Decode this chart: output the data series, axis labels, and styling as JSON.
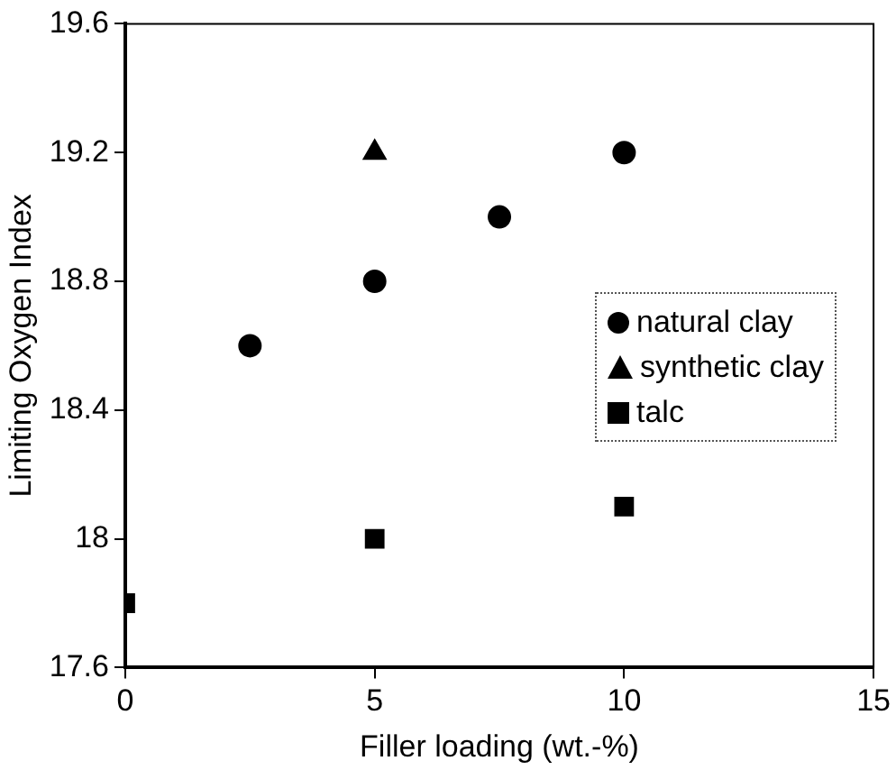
{
  "chart_data": {
    "type": "scatter",
    "xlabel": "Filler loading (wt.-%)",
    "ylabel": "Limiting Oxygen Index",
    "xlim": [
      0,
      15
    ],
    "xticks": [
      0,
      5,
      10,
      15
    ],
    "ylim": [
      17.6,
      19.6
    ],
    "yticks": [
      17.6,
      18,
      18.4,
      18.8,
      19.2,
      19.6
    ],
    "grid": false,
    "legend": "right",
    "series": [
      {
        "name": "natural clay",
        "color": "#000000",
        "marker": "circle",
        "x": [
          2.5,
          5,
          7.5,
          10
        ],
        "values": [
          18.6,
          18.8,
          19.0,
          19.2
        ]
      },
      {
        "name": "synthetic clay",
        "color": "#000000",
        "marker": "triangle",
        "x": [
          5
        ],
        "values": [
          19.2
        ]
      },
      {
        "name": "talc",
        "color": "#000000",
        "marker": "square",
        "x": [
          0,
          5,
          10
        ],
        "values": [
          17.8,
          18.0,
          18.1
        ]
      }
    ]
  }
}
